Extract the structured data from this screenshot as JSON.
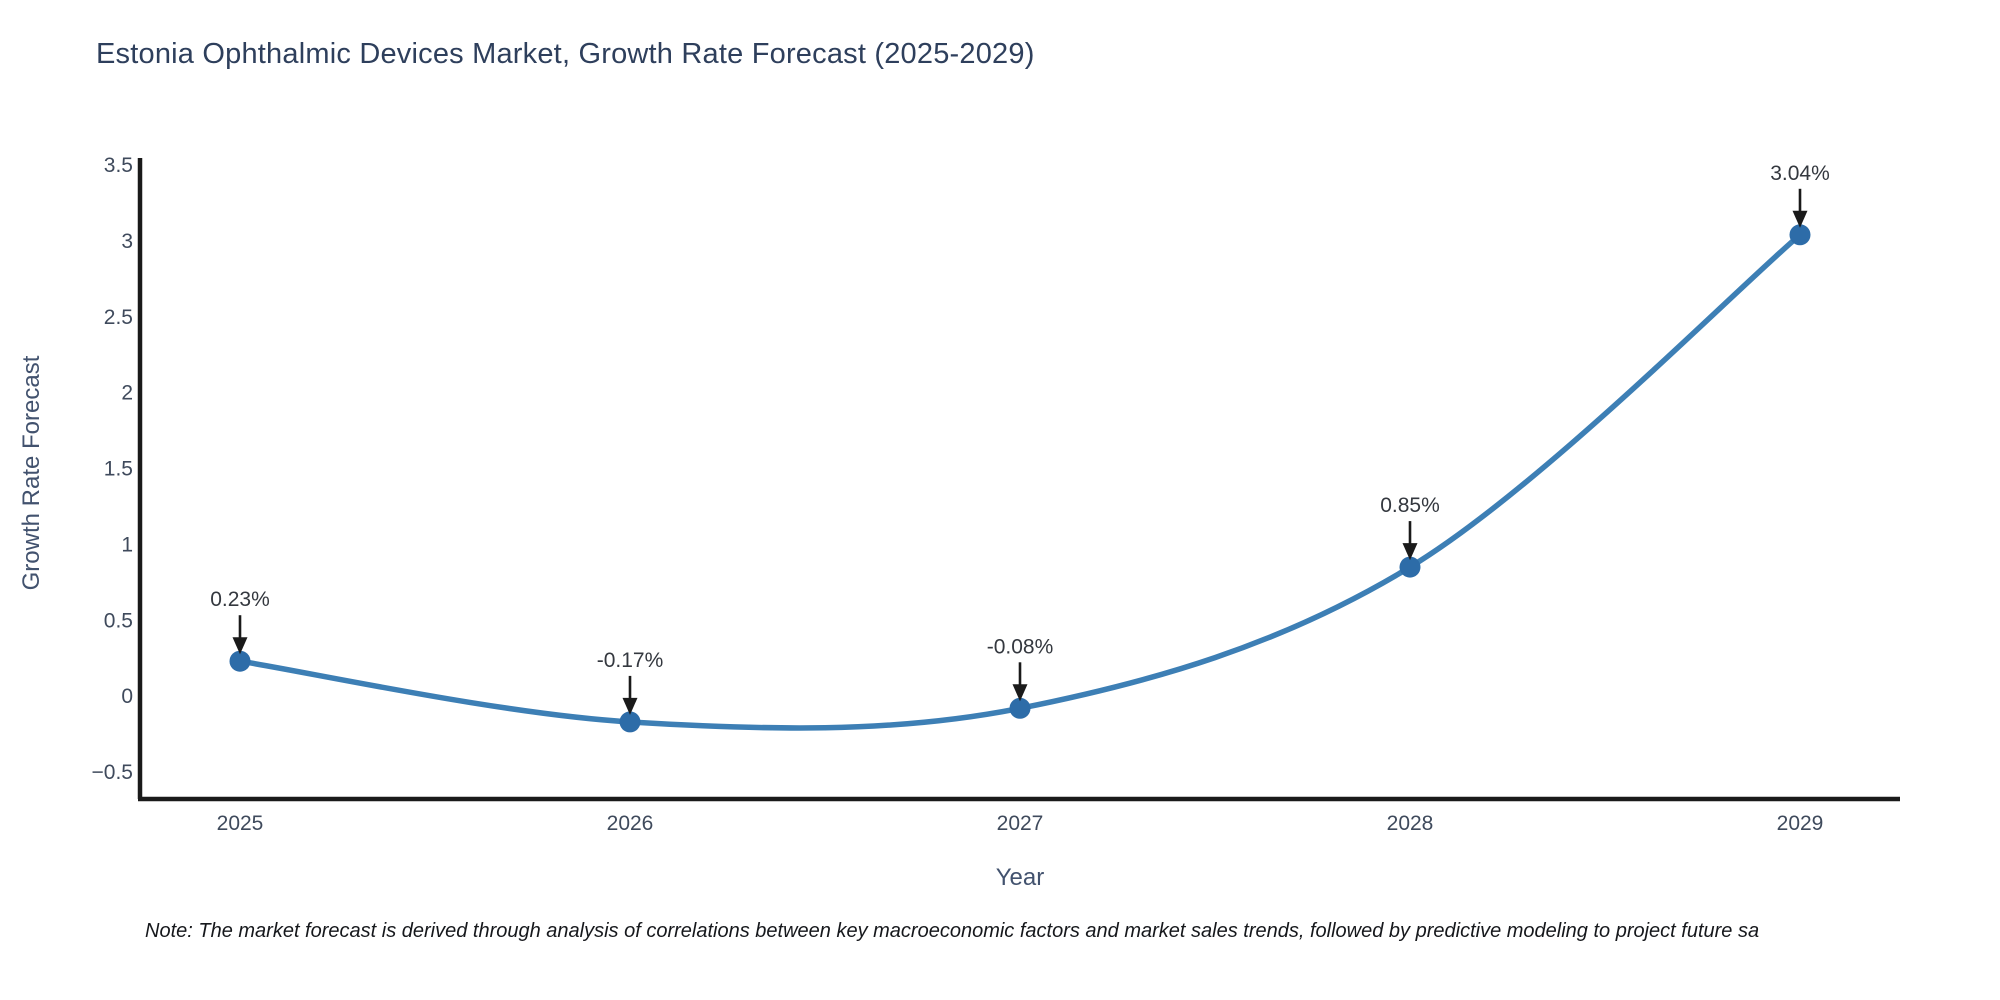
{
  "title": "Estonia Ophthalmic Devices Market, Growth Rate Forecast (2025-2029)",
  "note": "Note: The market forecast is derived through analysis of correlations between key macroeconomic factors and market sales trends, followed by predictive modeling to project future sa",
  "chart_data": {
    "type": "line",
    "title": "Estonia Ophthalmic Devices Market, Growth Rate Forecast (2025-2029)",
    "xlabel": "Year",
    "ylabel": "Growth Rate Forecast",
    "categories": [
      "2025",
      "2026",
      "2027",
      "2028",
      "2029"
    ],
    "series": [
      {
        "name": "Growth Rate Forecast",
        "values": [
          0.23,
          -0.17,
          -0.08,
          0.85,
          3.04
        ],
        "point_labels": [
          "0.23%",
          "-0.17%",
          "-0.08%",
          "0.85%",
          "3.04%"
        ]
      }
    ],
    "line_shape": "spline",
    "markers": true,
    "annotations_arrows": true,
    "yticks": [
      -0.5,
      0,
      0.5,
      1,
      1.5,
      2,
      2.5,
      3,
      3.5
    ],
    "yticklabels": [
      "−0.5",
      "0",
      "0.5",
      "1",
      "1.5",
      "2",
      "2.5",
      "3",
      "3.5"
    ],
    "ylim": [
      -0.68,
      3.55
    ],
    "grid": false,
    "legend_position": "none",
    "colors": {
      "line": "#3d7fb5",
      "marker": "#2d6ca8",
      "axis": "#1a1a1a",
      "tick_label": "#3f4a5c",
      "axis_title": "#42526e",
      "annotation_text": "#34383f",
      "arrow": "#1a1a1a",
      "background": "#ffffff",
      "title": "#2e3f5c"
    }
  }
}
